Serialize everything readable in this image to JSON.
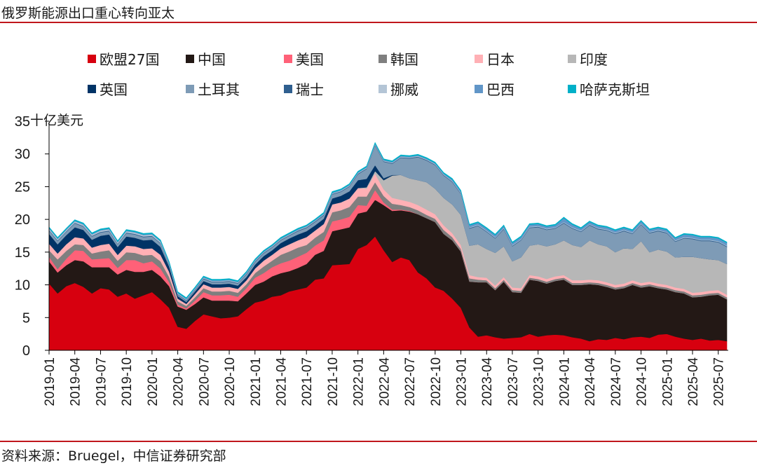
{
  "header": {
    "title": "俄罗斯能源出口重心转向亚太"
  },
  "footer": {
    "source": "资料来源：Bruegel，中信证券研究部"
  },
  "chart_data": {
    "type": "area",
    "stacked": true,
    "title": "俄罗斯能源出口重心转向亚太",
    "ylabel": "十亿美元",
    "xlabel": "",
    "ylim": [
      0,
      35
    ],
    "yticks": [
      0,
      5,
      10,
      15,
      20,
      25,
      30,
      35
    ],
    "legend_position": "top",
    "x_tick_labels": [
      "2019-01",
      "2019-04",
      "2019-07",
      "2019-10",
      "2020-01",
      "2020-04",
      "2020-07",
      "2020-10",
      "2021-01",
      "2021-04",
      "2021-07",
      "2021-10",
      "2022-01",
      "2022-04",
      "2022-07",
      "2022-10",
      "2023-01",
      "2023-04",
      "2023-07",
      "2023-10",
      "2024-01",
      "2024-04",
      "2024-07",
      "2024-10",
      "2025-01",
      "2025-04",
      "2025-07"
    ],
    "x_start": "2019-01",
    "x_months": 80,
    "series": [
      {
        "name": "欧盟27国",
        "color": "#d7000f",
        "values": [
          10.2,
          8.7,
          9.8,
          10.3,
          9.7,
          8.7,
          9.5,
          9.3,
          8.2,
          8.7,
          7.9,
          8.4,
          8.9,
          7.8,
          6.5,
          3.6,
          3.3,
          4.5,
          5.5,
          5.2,
          4.9,
          5.0,
          5.2,
          6.3,
          7.3,
          7.6,
          8.2,
          8.4,
          9.0,
          9.3,
          9.6,
          10.8,
          11.0,
          13.0,
          13.1,
          13.2,
          15.5,
          16.1,
          17.4,
          15.3,
          13.5,
          14.2,
          13.8,
          11.9,
          11.0,
          9.6,
          9.1,
          7.9,
          6.5,
          3.5,
          2.1,
          2.3,
          2.0,
          1.8,
          1.9,
          2.0,
          2.5,
          2.1,
          2.3,
          2.4,
          2.3,
          2.0,
          1.8,
          1.4,
          1.7,
          1.6,
          1.9,
          1.7,
          2.0,
          2.1,
          1.9,
          2.4,
          2.5,
          2.1,
          1.8,
          1.6,
          1.8,
          1.5,
          1.6,
          1.4
        ]
      },
      {
        "name": "中国",
        "color": "#231815",
        "values": [
          3.4,
          3.2,
          3.2,
          3.5,
          3.9,
          4.0,
          3.2,
          3.4,
          3.4,
          3.6,
          4.1,
          3.6,
          3.4,
          3.5,
          3.3,
          3.1,
          2.9,
          2.6,
          2.6,
          2.4,
          2.7,
          2.6,
          2.3,
          2.4,
          2.7,
          2.9,
          3.1,
          3.4,
          3.1,
          3.3,
          3.6,
          3.8,
          4.2,
          5.2,
          5.4,
          5.6,
          5.4,
          5.1,
          5.6,
          6.9,
          7.8,
          7.2,
          7.4,
          8.9,
          9.2,
          10.0,
          8.7,
          8.9,
          8.6,
          7.0,
          8.3,
          8.1,
          7.2,
          8.7,
          7.0,
          6.8,
          8.3,
          8.5,
          7.9,
          8.2,
          8.5,
          8.0,
          8.2,
          8.7,
          8.3,
          8.1,
          7.4,
          7.8,
          8.0,
          7.5,
          7.9,
          7.1,
          6.8,
          6.8,
          6.9,
          6.5,
          6.4,
          6.9,
          6.9,
          6.4
        ]
      },
      {
        "name": "美国",
        "color": "#ff6178",
        "values": [
          0.7,
          0.5,
          1.0,
          1.5,
          1.6,
          1.2,
          1.3,
          1.4,
          1.0,
          1.5,
          1.8,
          1.3,
          1.3,
          1.2,
          0.6,
          0.3,
          0.2,
          0.5,
          0.8,
          0.8,
          0.8,
          0.9,
          0.7,
          0.8,
          1.1,
          1.3,
          1.4,
          1.5,
          1.6,
          1.7,
          1.7,
          1.4,
          1.6,
          1.5,
          1.5,
          1.6,
          1.3,
          0.9,
          1.5,
          0.4,
          0.2,
          0.1,
          0.1,
          0.0,
          0.0,
          0.0,
          0.0,
          0.0,
          0.0,
          0.0,
          0.0,
          0.0,
          0.0,
          0.0,
          0.0,
          0.0,
          0.0,
          0.0,
          0.0,
          0.0,
          0.0,
          0.0,
          0.0,
          0.0,
          0.0,
          0.0,
          0.0,
          0.0,
          0.0,
          0.0,
          0.0,
          0.0,
          0.0,
          0.0,
          0.0,
          0.0,
          0.0,
          0.0,
          0.0,
          0.0
        ]
      },
      {
        "name": "韩国",
        "color": "#7f7f7f",
        "values": [
          1.0,
          1.5,
          1.2,
          0.9,
          0.9,
          0.9,
          1.1,
          1.2,
          1.1,
          1.2,
          1.1,
          1.2,
          1.0,
          1.1,
          0.8,
          0.5,
          0.4,
          0.5,
          0.6,
          0.6,
          0.6,
          0.6,
          0.6,
          0.6,
          0.7,
          1.0,
          1.0,
          1.3,
          1.4,
          1.4,
          1.2,
          1.2,
          1.3,
          1.4,
          1.4,
          1.5,
          1.3,
          1.4,
          1.2,
          1.0,
          0.9,
          0.7,
          0.6,
          0.6,
          0.5,
          0.5,
          0.6,
          0.5,
          0.4,
          0.5,
          0.4,
          0.3,
          0.3,
          0.3,
          0.3,
          0.3,
          0.3,
          0.3,
          0.3,
          0.3,
          0.3,
          0.3,
          0.3,
          0.3,
          0.3,
          0.3,
          0.3,
          0.3,
          0.3,
          0.3,
          0.3,
          0.3,
          0.3,
          0.3,
          0.3,
          0.3,
          0.3,
          0.3,
          0.3,
          0.3
        ]
      },
      {
        "name": "日本",
        "color": "#ffb0b5",
        "values": [
          1.0,
          0.9,
          1.0,
          1.1,
          1.0,
          0.9,
          1.0,
          1.0,
          0.9,
          1.0,
          1.0,
          1.0,
          1.0,
          1.0,
          0.8,
          0.4,
          0.3,
          0.5,
          0.6,
          0.6,
          0.6,
          0.6,
          0.6,
          0.6,
          0.7,
          0.9,
          0.9,
          1.0,
          1.1,
          1.1,
          1.2,
          1.1,
          1.2,
          1.2,
          1.2,
          1.3,
          1.3,
          1.2,
          1.3,
          1.0,
          0.9,
          0.8,
          0.8,
          0.8,
          0.8,
          0.7,
          0.7,
          0.6,
          0.6,
          0.5,
          0.4,
          0.4,
          0.4,
          0.4,
          0.4,
          0.4,
          0.4,
          0.4,
          0.4,
          0.4,
          0.4,
          0.4,
          0.4,
          0.4,
          0.4,
          0.4,
          0.4,
          0.4,
          0.4,
          0.4,
          0.4,
          0.4,
          0.4,
          0.4,
          0.4,
          0.4,
          0.4,
          0.4,
          0.4,
          0.4
        ]
      },
      {
        "name": "印度",
        "color": "#b7b7b7",
        "values": [
          0.0,
          0.0,
          0.0,
          0.0,
          0.0,
          0.0,
          0.0,
          0.0,
          0.0,
          0.0,
          0.0,
          0.0,
          0.0,
          0.0,
          0.0,
          0.0,
          0.0,
          0.0,
          0.0,
          0.0,
          0.0,
          0.0,
          0.0,
          0.0,
          0.0,
          0.0,
          0.0,
          0.0,
          0.0,
          0.0,
          0.0,
          0.0,
          0.0,
          0.0,
          0.0,
          0.0,
          0.0,
          0.2,
          0.4,
          1.4,
          3.4,
          3.8,
          3.6,
          3.8,
          4.2,
          3.9,
          4.2,
          4.4,
          4.6,
          4.5,
          5.0,
          4.4,
          5.0,
          4.7,
          4.0,
          4.7,
          4.5,
          4.9,
          5.0,
          4.9,
          5.3,
          5.4,
          5.1,
          6.0,
          5.5,
          5.5,
          5.0,
          5.4,
          4.8,
          6.4,
          4.5,
          5.2,
          5.1,
          4.6,
          4.9,
          5.5,
          5.2,
          4.8,
          4.6,
          4.7
        ]
      },
      {
        "name": "英国",
        "color": "#003366",
        "values": [
          1.5,
          1.4,
          1.4,
          1.5,
          1.3,
          1.2,
          1.4,
          1.4,
          1.2,
          1.4,
          1.3,
          1.3,
          1.3,
          1.2,
          0.8,
          0.4,
          0.3,
          0.4,
          0.5,
          0.5,
          0.5,
          0.5,
          0.5,
          0.5,
          0.6,
          0.7,
          0.7,
          0.8,
          0.9,
          0.9,
          0.9,
          0.8,
          0.8,
          0.9,
          1.0,
          1.1,
          1.2,
          1.3,
          0.9,
          0.3,
          0.1,
          0.0,
          0.0,
          0.0,
          0.0,
          0.0,
          0.0,
          0.0,
          0.0,
          0.0,
          0.0,
          0.0,
          0.0,
          0.0,
          0.0,
          0.0,
          0.0,
          0.0,
          0.0,
          0.0,
          0.0,
          0.0,
          0.0,
          0.0,
          0.0,
          0.0,
          0.0,
          0.0,
          0.0,
          0.0,
          0.0,
          0.0,
          0.0,
          0.0,
          0.0,
          0.0,
          0.0,
          0.0,
          0.0,
          0.0
        ]
      },
      {
        "name": "土耳其",
        "color": "#7e9bb6",
        "values": [
          0.5,
          0.5,
          0.5,
          0.6,
          0.5,
          0.5,
          0.5,
          0.5,
          0.4,
          0.5,
          0.5,
          0.5,
          0.5,
          0.5,
          0.3,
          0.2,
          0.2,
          0.2,
          0.3,
          0.3,
          0.3,
          0.3,
          0.3,
          0.4,
          0.4,
          0.4,
          0.4,
          0.4,
          0.4,
          0.5,
          0.5,
          0.5,
          0.5,
          0.6,
          0.6,
          0.7,
          0.9,
          1.5,
          3.0,
          2.5,
          1.7,
          2.6,
          3.0,
          3.5,
          3.3,
          3.6,
          3.4,
          3.4,
          3.2,
          2.6,
          2.8,
          2.6,
          2.2,
          2.6,
          2.3,
          2.6,
          2.7,
          2.6,
          2.5,
          2.4,
          2.6,
          2.5,
          2.3,
          2.3,
          2.3,
          2.4,
          2.8,
          2.6,
          2.3,
          2.5,
          2.9,
          2.8,
          2.8,
          2.4,
          2.8,
          2.7,
          2.6,
          2.8,
          2.7,
          2.6
        ]
      },
      {
        "name": "瑞士",
        "color": "#2f5f8f",
        "values": [
          0.1,
          0.1,
          0.1,
          0.1,
          0.1,
          0.1,
          0.1,
          0.1,
          0.1,
          0.1,
          0.1,
          0.1,
          0.1,
          0.1,
          0.1,
          0.1,
          0.1,
          0.1,
          0.1,
          0.1,
          0.1,
          0.1,
          0.1,
          0.1,
          0.1,
          0.1,
          0.1,
          0.1,
          0.1,
          0.1,
          0.1,
          0.1,
          0.1,
          0.1,
          0.1,
          0.1,
          0.1,
          0.1,
          0.1,
          0.1,
          0.1,
          0.1,
          0.1,
          0.1,
          0.1,
          0.1,
          0.1,
          0.1,
          0.1,
          0.1,
          0.1,
          0.1,
          0.1,
          0.1,
          0.1,
          0.1,
          0.1,
          0.1,
          0.1,
          0.1,
          0.1,
          0.1,
          0.1,
          0.1,
          0.1,
          0.1,
          0.1,
          0.1,
          0.1,
          0.1,
          0.1,
          0.1,
          0.1,
          0.1,
          0.1,
          0.1,
          0.1,
          0.1,
          0.1,
          0.1
        ]
      },
      {
        "name": "挪威",
        "color": "#b4c5d6",
        "values": [
          0.2,
          0.2,
          0.2,
          0.2,
          0.2,
          0.2,
          0.2,
          0.2,
          0.2,
          0.2,
          0.2,
          0.2,
          0.2,
          0.2,
          0.1,
          0.1,
          0.1,
          0.1,
          0.1,
          0.1,
          0.1,
          0.1,
          0.1,
          0.1,
          0.1,
          0.1,
          0.1,
          0.1,
          0.1,
          0.1,
          0.1,
          0.1,
          0.1,
          0.1,
          0.1,
          0.1,
          0.1,
          0.1,
          0.1,
          0.1,
          0.1,
          0.1,
          0.1,
          0.1,
          0.1,
          0.1,
          0.1,
          0.1,
          0.1,
          0.1,
          0.1,
          0.1,
          0.1,
          0.1,
          0.1,
          0.1,
          0.1,
          0.1,
          0.1,
          0.1,
          0.1,
          0.1,
          0.1,
          0.1,
          0.1,
          0.1,
          0.1,
          0.1,
          0.1,
          0.1,
          0.1,
          0.1,
          0.1,
          0.1,
          0.1,
          0.1,
          0.1,
          0.1,
          0.1,
          0.1
        ]
      },
      {
        "name": "巴西",
        "color": "#6196c8",
        "values": [
          0.1,
          0.1,
          0.1,
          0.1,
          0.1,
          0.1,
          0.1,
          0.1,
          0.1,
          0.1,
          0.1,
          0.1,
          0.1,
          0.1,
          0.1,
          0.1,
          0.1,
          0.1,
          0.1,
          0.1,
          0.1,
          0.1,
          0.1,
          0.1,
          0.1,
          0.1,
          0.1,
          0.1,
          0.1,
          0.1,
          0.1,
          0.1,
          0.1,
          0.1,
          0.1,
          0.1,
          0.1,
          0.1,
          0.1,
          0.1,
          0.1,
          0.1,
          0.1,
          0.1,
          0.1,
          0.1,
          0.1,
          0.2,
          0.2,
          0.3,
          0.3,
          0.3,
          0.3,
          0.3,
          0.3,
          0.3,
          0.3,
          0.3,
          0.3,
          0.3,
          0.6,
          0.4,
          0.3,
          0.3,
          0.3,
          0.3,
          0.3,
          0.3,
          0.3,
          0.3,
          0.3,
          0.3,
          0.3,
          0.3,
          0.4,
          0.4,
          0.4,
          0.4,
          0.4,
          0.4
        ]
      },
      {
        "name": "哈萨克斯坦",
        "color": "#00b0c8",
        "values": [
          0.15,
          0.15,
          0.15,
          0.15,
          0.15,
          0.15,
          0.15,
          0.15,
          0.15,
          0.15,
          0.15,
          0.15,
          0.15,
          0.15,
          0.15,
          0.15,
          0.15,
          0.15,
          0.15,
          0.15,
          0.15,
          0.15,
          0.15,
          0.15,
          0.15,
          0.15,
          0.15,
          0.15,
          0.15,
          0.15,
          0.15,
          0.15,
          0.15,
          0.15,
          0.15,
          0.15,
          0.15,
          0.15,
          0.15,
          0.15,
          0.15,
          0.15,
          0.15,
          0.15,
          0.15,
          0.15,
          0.15,
          0.15,
          0.15,
          0.15,
          0.15,
          0.15,
          0.15,
          0.15,
          0.15,
          0.15,
          0.15,
          0.15,
          0.15,
          0.15,
          0.15,
          0.15,
          0.15,
          0.15,
          0.15,
          0.15,
          0.15,
          0.15,
          0.15,
          0.15,
          0.15,
          0.15,
          0.15,
          0.15,
          0.15,
          0.15,
          0.15,
          0.15,
          0.15,
          0.15
        ]
      }
    ]
  }
}
